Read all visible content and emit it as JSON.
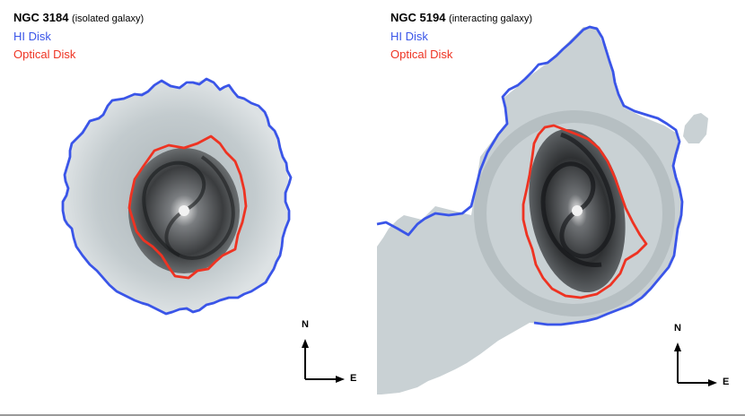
{
  "colors": {
    "hi_disk": "#3a55e8",
    "optical_disk": "#ee3322",
    "gas": "#c9d1d4",
    "galaxy_core": "#2a2a2a"
  },
  "panels": [
    {
      "galaxy_name": "NGC 3184",
      "galaxy_note": "(isolated galaxy)",
      "hi_label": "HI Disk",
      "optical_label": "Optical Disk",
      "compass_north": "N",
      "compass_east": "E"
    },
    {
      "galaxy_name": "NGC 5194",
      "galaxy_note": "(interacting galaxy)",
      "hi_label": "HI Disk",
      "optical_label": "Optical Disk",
      "compass_north": "N",
      "compass_east": "E"
    }
  ]
}
